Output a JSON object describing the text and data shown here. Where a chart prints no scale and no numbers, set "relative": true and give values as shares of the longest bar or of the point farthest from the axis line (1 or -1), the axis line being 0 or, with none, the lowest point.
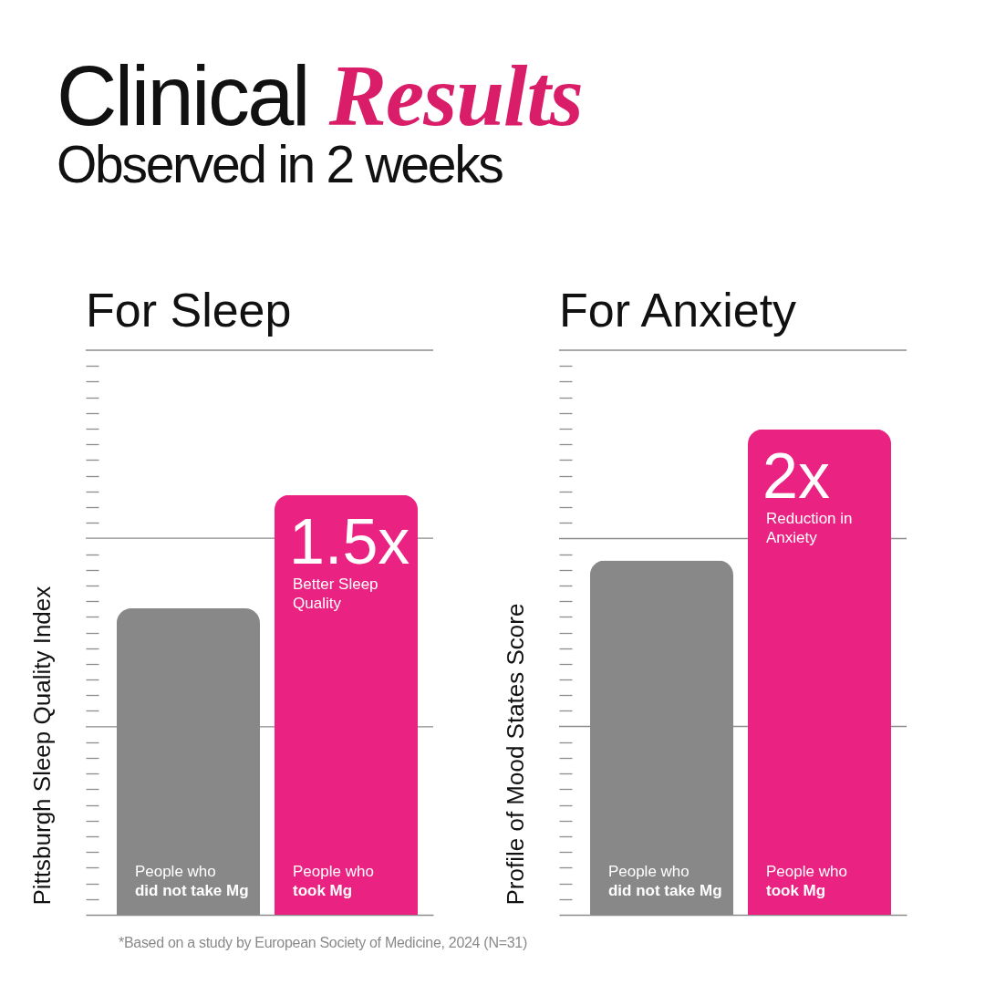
{
  "chart_data": [
    {
      "type": "other",
      "title": "Clinical Results",
      "subtitle": "Observed in 2 weeks",
      "annotations": [
        "*Based on a study by European Society of Medicine, 2024 (N=31)"
      ]
    },
    {
      "type": "bar",
      "title": "For Sleep",
      "ylabel": "Pittsburgh Sleep Quality Index",
      "categories": [
        "People who did not take Mg",
        "People who took Mg"
      ],
      "values": [
        0.73,
        1
      ],
      "colors": [
        "#888888",
        "#ea2383"
      ],
      "relative": true,
      "ref_lines": [
        {
          "axis": "y",
          "value": 0.448,
          "color": "#8c8c8c"
        },
        {
          "axis": "y",
          "value": 0.897,
          "color": "#8c8c8c"
        },
        {
          "axis": "y",
          "value": 1.345,
          "color": "#8c8c8c"
        }
      ],
      "annotations": [
        "1.5x",
        "Better Sleep Quality"
      ]
    },
    {
      "type": "bar",
      "title": "For Anxiety",
      "ylabel": "Profile of Mood States Score",
      "categories": [
        "People who did not take Mg",
        "People who took Mg"
      ],
      "values": [
        0.73,
        1
      ],
      "colors": [
        "#888888",
        "#ea2383"
      ],
      "relative": true,
      "ref_lines": [
        {
          "axis": "y",
          "value": 0.388,
          "color": "#8c8c8c"
        },
        {
          "axis": "y",
          "value": 0.775,
          "color": "#8c8c8c"
        },
        {
          "axis": "y",
          "value": 1.163,
          "color": "#8c8c8c"
        }
      ],
      "annotations": [
        "2x",
        "Reduction in Anxiety"
      ]
    }
  ]
}
